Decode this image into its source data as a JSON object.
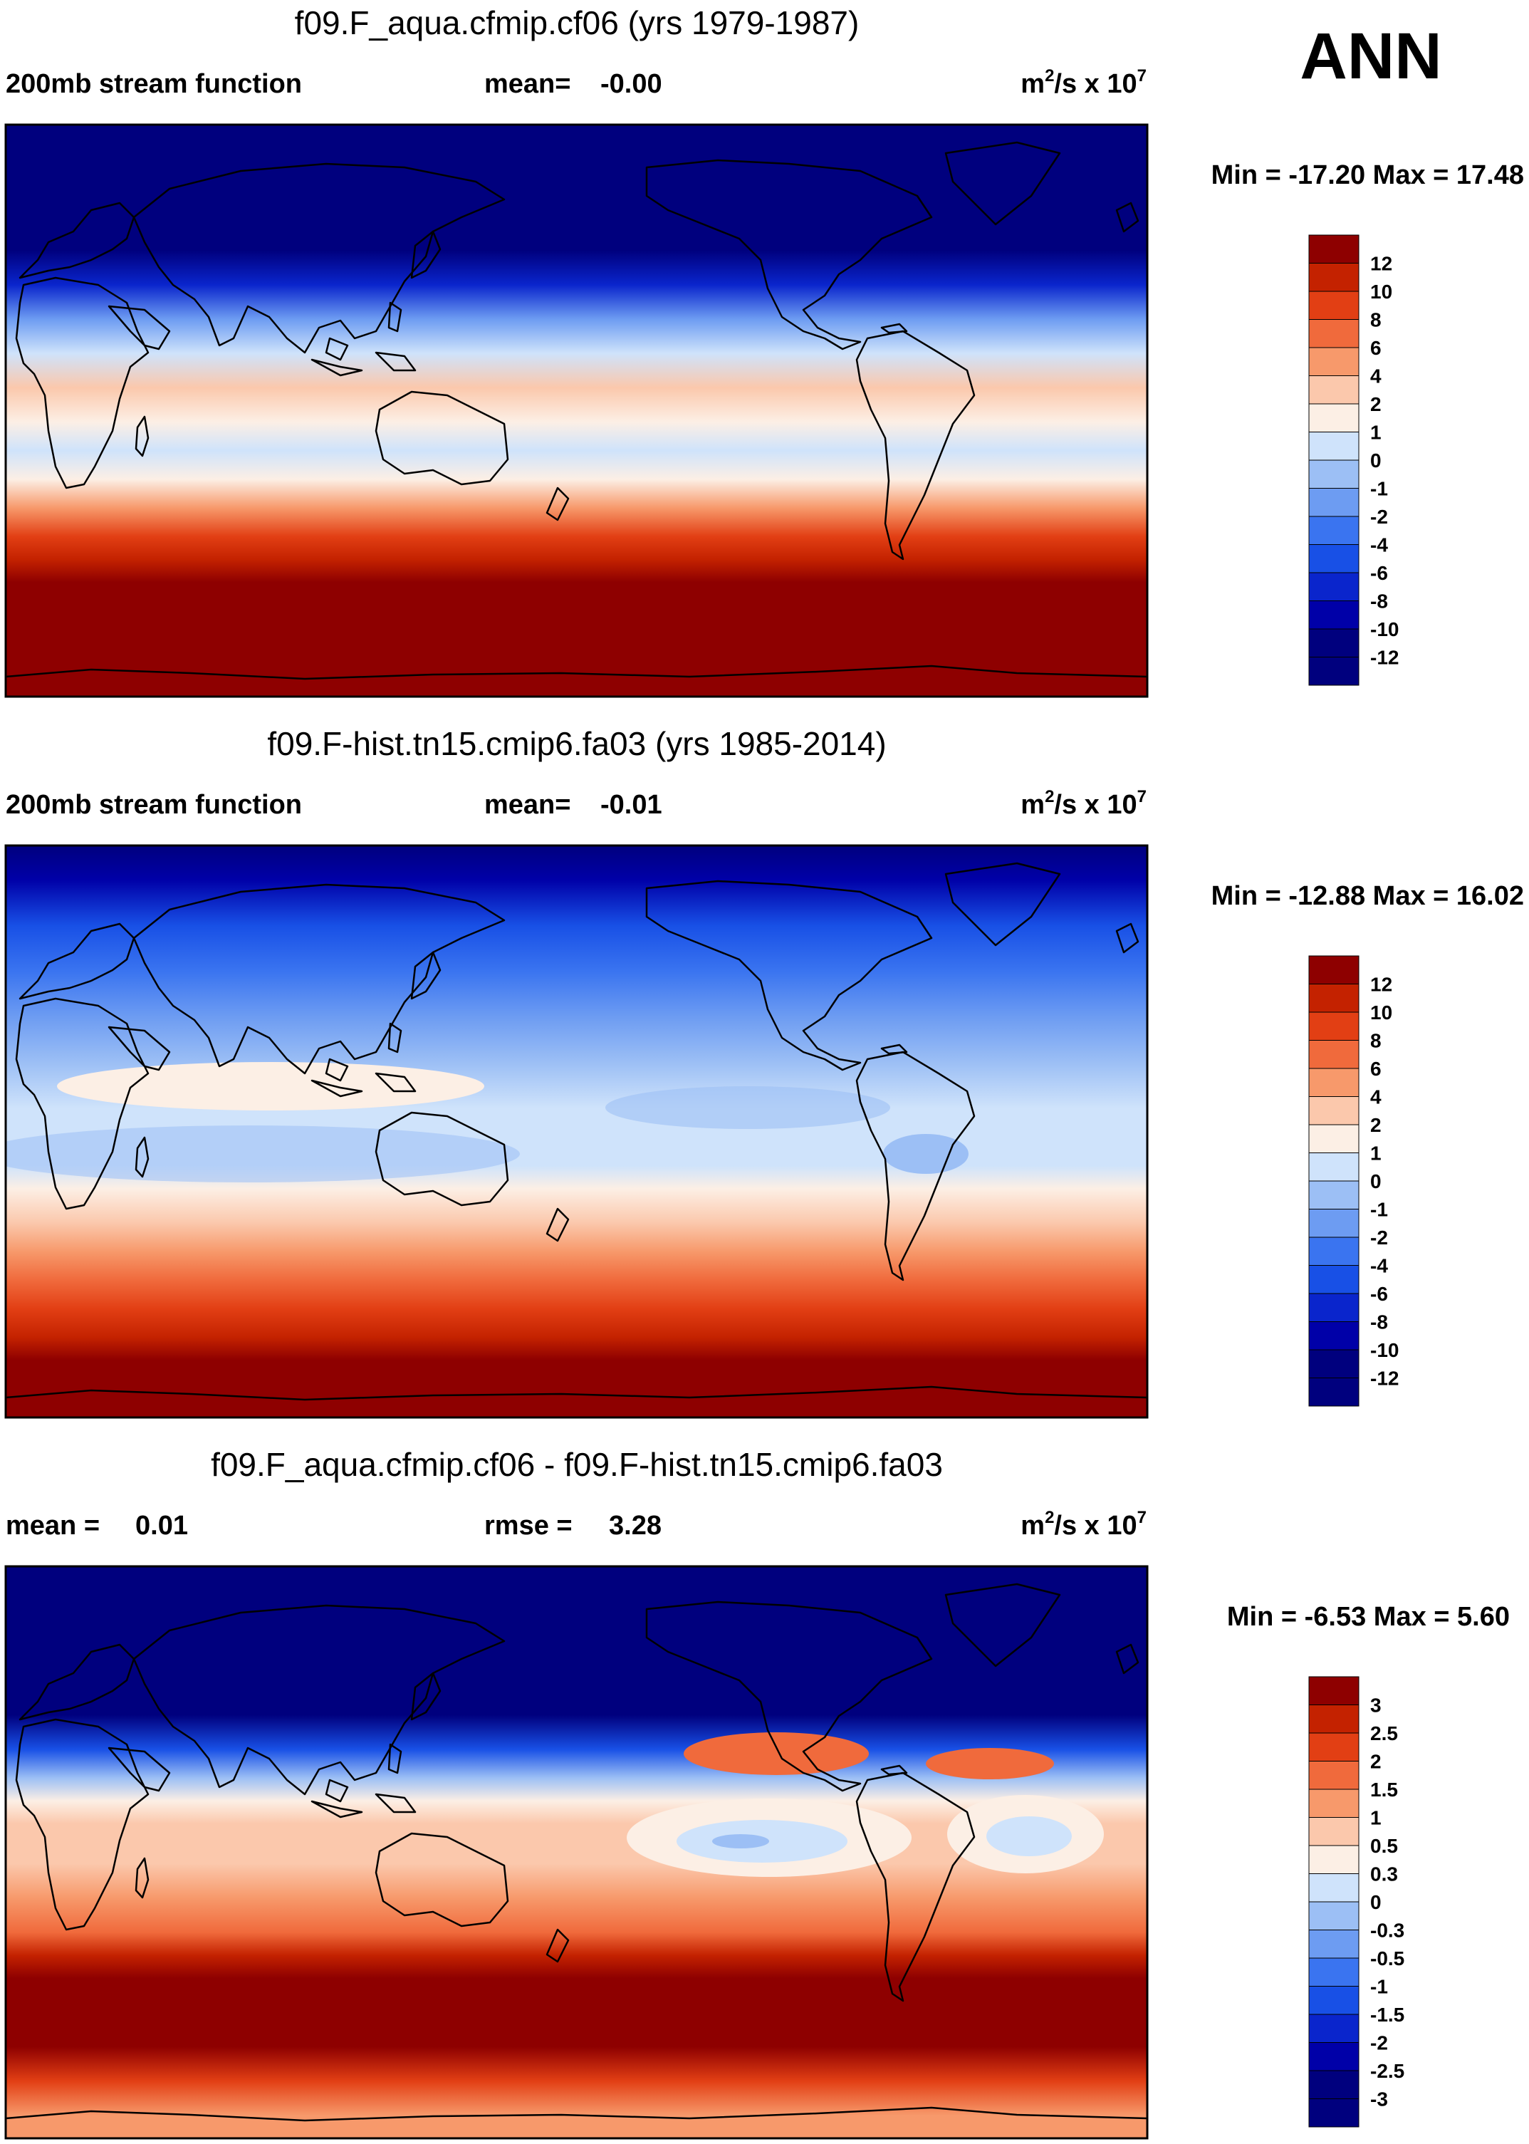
{
  "season": "ANN",
  "units": {
    "base": "m",
    "exp1": "2",
    "mid": "/s x 10",
    "exp2": "7"
  },
  "colors": {
    "absolute": [
      "#00007e",
      "#0000a8",
      "#0a25cc",
      "#1850e6",
      "#3a74f0",
      "#6d9cf2",
      "#9cbff5",
      "#cfe3fb",
      "#fcefe5",
      "#fbc8ac",
      "#f7996b",
      "#f06a3c",
      "#e23f14",
      "#c42200",
      "#8e0000"
    ],
    "difference": [
      "#00007e",
      "#0000a8",
      "#0a25cc",
      "#1850e6",
      "#3a74f0",
      "#6d9cf2",
      "#9cbff5",
      "#cfe3fb",
      "#fcefe5",
      "#fbc8ac",
      "#f7996b",
      "#f06a3c",
      "#e23f14",
      "#c42200",
      "#8e0000"
    ]
  },
  "chart_data": [
    {
      "type": "heatmap",
      "panel": "top",
      "title": "f09.F_aqua.cfmip.cf06 (yrs 1979-1987)",
      "left_label": "200mb stream function",
      "center_label": "mean=",
      "center_value": "-0.00",
      "min_max": "Min = -17.20 Max =  17.48",
      "levels": [
        "12",
        "10",
        "8",
        "6",
        "4",
        "2",
        "1",
        "0",
        "-1",
        "-2",
        "-4",
        "-6",
        "-8",
        "-10",
        "-12"
      ],
      "lat_profile": [
        {
          "lat": 90,
          "value": -17.2
        },
        {
          "lat": 60,
          "value": -15.0
        },
        {
          "lat": 45,
          "value": -9.0
        },
        {
          "lat": 32,
          "value": -2.5
        },
        {
          "lat": 15,
          "value": 1.5
        },
        {
          "lat": 0,
          "value": -1.5
        },
        {
          "lat": -15,
          "value": 0.5
        },
        {
          "lat": -25,
          "value": 6.0
        },
        {
          "lat": -35,
          "value": 12.0
        },
        {
          "lat": -60,
          "value": 16.0
        },
        {
          "lat": -90,
          "value": 17.48
        }
      ]
    },
    {
      "type": "heatmap",
      "panel": "middle",
      "title": "f09.F-hist.tn15.cmip6.fa03 (yrs 1985-2014)",
      "left_label": "200mb stream function",
      "center_label": "mean=",
      "center_value": "-0.01",
      "min_max": "Min = -12.88 Max =  16.02",
      "levels": [
        "12",
        "10",
        "8",
        "6",
        "4",
        "2",
        "1",
        "0",
        "-1",
        "-2",
        "-4",
        "-6",
        "-8",
        "-10",
        "-12"
      ],
      "lat_profile": [
        {
          "lat": 90,
          "value": -12.88
        },
        {
          "lat": 65,
          "value": -10.0
        },
        {
          "lat": 50,
          "value": -6.0
        },
        {
          "lat": 35,
          "value": -3.0
        },
        {
          "lat": 20,
          "value": -0.5
        },
        {
          "lat": 5,
          "value": -1.2
        },
        {
          "lat": -10,
          "value": -0.8
        },
        {
          "lat": -20,
          "value": 2.0
        },
        {
          "lat": -35,
          "value": 8.0
        },
        {
          "lat": -60,
          "value": 15.0
        },
        {
          "lat": -90,
          "value": 16.02
        }
      ]
    },
    {
      "type": "heatmap",
      "panel": "bottom",
      "title": "f09.F_aqua.cfmip.cf06 - f09.F-hist.tn15.cmip6.fa03",
      "left_label": "mean =",
      "left_value": "0.01",
      "center_label": "rmse =",
      "center_value": "3.28",
      "min_max": "Min =  -6.53 Max =   5.60",
      "levels": [
        "3",
        "2.5",
        "2",
        "1.5",
        "1",
        "0.5",
        "0.3",
        "0",
        "-0.3",
        "-0.5",
        "-1",
        "-1.5",
        "-2",
        "-2.5",
        "-3"
      ],
      "lat_profile": [
        {
          "lat": 90,
          "value": -6.53
        },
        {
          "lat": 55,
          "value": -3.2
        },
        {
          "lat": 40,
          "value": -1.5
        },
        {
          "lat": 30,
          "value": 0.4
        },
        {
          "lat": 15,
          "value": 1.2
        },
        {
          "lat": 0,
          "value": 0.7
        },
        {
          "lat": -15,
          "value": 1.3
        },
        {
          "lat": -30,
          "value": 3.0
        },
        {
          "lat": -60,
          "value": 5.0
        },
        {
          "lat": -90,
          "value": 1.5
        }
      ]
    }
  ]
}
